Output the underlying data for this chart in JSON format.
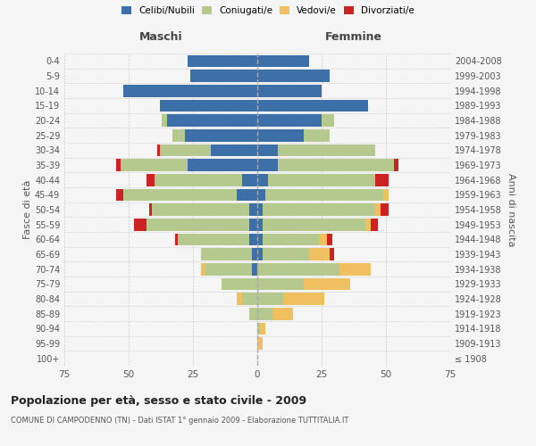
{
  "age_groups": [
    "100+",
    "95-99",
    "90-94",
    "85-89",
    "80-84",
    "75-79",
    "70-74",
    "65-69",
    "60-64",
    "55-59",
    "50-54",
    "45-49",
    "40-44",
    "35-39",
    "30-34",
    "25-29",
    "20-24",
    "15-19",
    "10-14",
    "5-9",
    "0-4"
  ],
  "birth_years": [
    "≤ 1908",
    "1909-1913",
    "1914-1918",
    "1919-1923",
    "1924-1928",
    "1929-1933",
    "1934-1938",
    "1939-1943",
    "1944-1948",
    "1949-1953",
    "1954-1958",
    "1959-1963",
    "1964-1968",
    "1969-1973",
    "1974-1978",
    "1979-1983",
    "1984-1988",
    "1989-1993",
    "1994-1998",
    "1999-2003",
    "2004-2008"
  ],
  "males": {
    "celibi": [
      0,
      0,
      0,
      0,
      0,
      0,
      2,
      2,
      3,
      3,
      3,
      8,
      6,
      27,
      18,
      28,
      35,
      38,
      52,
      26,
      27
    ],
    "coniugati": [
      0,
      0,
      0,
      3,
      6,
      14,
      18,
      20,
      28,
      40,
      38,
      44,
      34,
      26,
      20,
      5,
      2,
      0,
      0,
      0,
      0
    ],
    "vedovi": [
      0,
      0,
      0,
      0,
      2,
      0,
      2,
      0,
      0,
      0,
      0,
      0,
      0,
      0,
      0,
      0,
      0,
      0,
      0,
      0,
      0
    ],
    "divorziati": [
      0,
      0,
      0,
      0,
      0,
      0,
      0,
      0,
      1,
      5,
      1,
      3,
      3,
      2,
      1,
      0,
      0,
      0,
      0,
      0,
      0
    ]
  },
  "females": {
    "nubili": [
      0,
      0,
      0,
      0,
      0,
      0,
      0,
      2,
      2,
      2,
      2,
      3,
      4,
      8,
      8,
      18,
      25,
      43,
      25,
      28,
      20
    ],
    "coniugate": [
      0,
      0,
      1,
      6,
      10,
      18,
      32,
      18,
      22,
      40,
      44,
      46,
      42,
      45,
      38,
      10,
      5,
      0,
      0,
      0,
      0
    ],
    "vedove": [
      0,
      2,
      2,
      8,
      16,
      18,
      12,
      8,
      3,
      2,
      2,
      2,
      0,
      0,
      0,
      0,
      0,
      0,
      0,
      0,
      0
    ],
    "divorziate": [
      0,
      0,
      0,
      0,
      0,
      0,
      0,
      2,
      2,
      3,
      3,
      0,
      5,
      2,
      0,
      0,
      0,
      0,
      0,
      0,
      0
    ]
  },
  "colors": {
    "celibi": "#3d6fa8",
    "coniugati": "#b5c98e",
    "vedovi": "#f0c060",
    "divorziati": "#cc2222"
  },
  "xlim": 75,
  "title": "Popolazione per età, sesso e stato civile - 2009",
  "subtitle": "COMUNE DI CAMPODENNO (TN) - Dati ISTAT 1° gennaio 2009 - Elaborazione TUTTITALIA.IT",
  "ylabel_left": "Fasce di età",
  "ylabel_right": "Anni di nascita",
  "xlabel_left": "Maschi",
  "xlabel_right": "Femmine"
}
